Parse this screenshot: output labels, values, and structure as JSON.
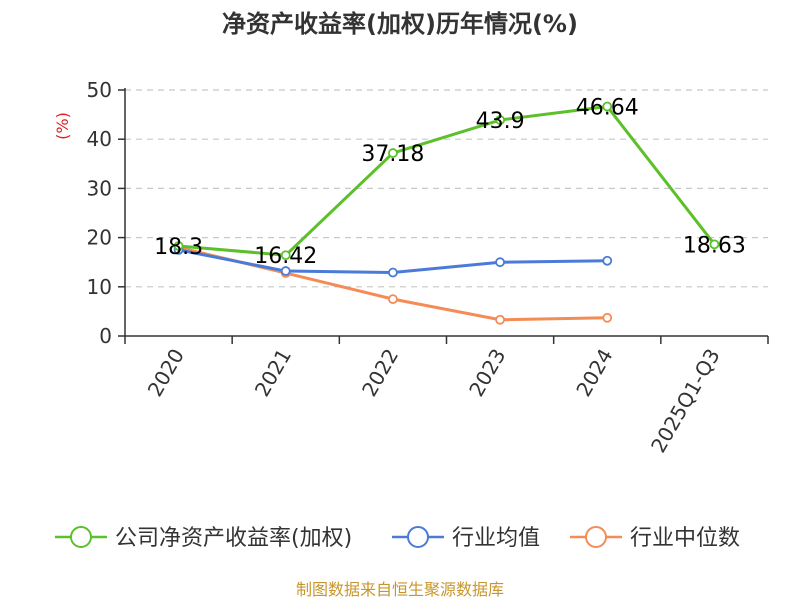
{
  "chart_data": {
    "type": "line",
    "title": "净资产收益率(加权)历年情况(%)",
    "ylabel": "(%)",
    "ylim": [
      0,
      50
    ],
    "yticks": [
      0,
      10,
      20,
      30,
      40,
      50
    ],
    "categories": [
      "2020",
      "2021",
      "2022",
      "2023",
      "2024",
      "2025Q1-Q3"
    ],
    "grid": true,
    "legend_position": "bottom",
    "series": [
      {
        "name": "公司净资产收益率(加权)",
        "color": "#5bc02a",
        "values": [
          18.3,
          16.42,
          37.18,
          43.9,
          46.64,
          18.63
        ],
        "labels": [
          "18.3",
          "16.42",
          "37.18",
          "43.9",
          "46.64",
          "18.63"
        ]
      },
      {
        "name": "行业均值",
        "color": "#4b7bd8",
        "values": [
          17.5,
          13.2,
          12.9,
          15.0,
          15.3,
          null
        ]
      },
      {
        "name": "行业中位数",
        "color": "#f58b55",
        "values": [
          18.0,
          12.8,
          7.5,
          3.3,
          3.7,
          null
        ]
      }
    ],
    "source": "制图数据来自恒生聚源数据库"
  }
}
